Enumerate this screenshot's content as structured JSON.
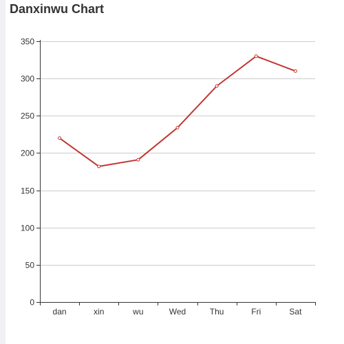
{
  "chart_data": {
    "type": "line",
    "title": "Danxinwu Chart",
    "categories": [
      "dan",
      "xin",
      "wu",
      "Wed",
      "Thu",
      "Fri",
      "Sat"
    ],
    "series": [
      {
        "values": [
          220,
          182,
          191,
          234,
          290,
          330,
          310
        ]
      }
    ],
    "y_ticks": [
      "0",
      "50",
      "100",
      "150",
      "200",
      "250",
      "300",
      "350"
    ],
    "ylim": [
      0,
      350
    ],
    "grid": "horizontal",
    "line_color": "#c23531",
    "grid_color": "#cccccc",
    "axis_color": "#333333",
    "text_color": "#333333"
  }
}
